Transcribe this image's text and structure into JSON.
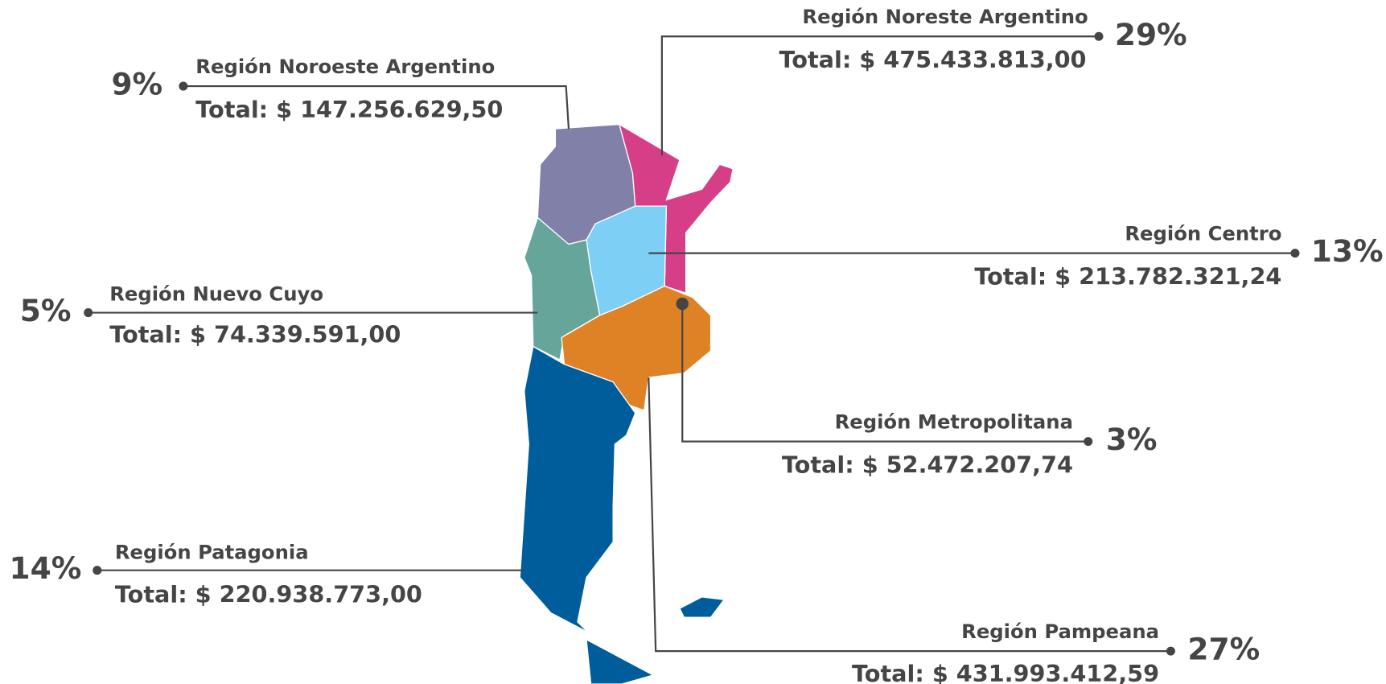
{
  "regions": [
    {
      "name": "Región Noroeste Argentino",
      "total": "Total: $ 147.256.629,50",
      "percent": "9%"
    },
    {
      "name": "Región Noreste Argentino",
      "total": "Total: $ 475.433.813,00",
      "percent": "29%"
    },
    {
      "name": "Región Centro",
      "total": "Total: $ 213.782.321,24",
      "percent": "13%"
    },
    {
      "name": "Región Nuevo Cuyo",
      "total": "Total: $ 74.339.591,00",
      "percent": "5%"
    },
    {
      "name": "Región Metropolitana",
      "total": "Total: $ 52.472.207,74",
      "percent": "3%"
    },
    {
      "name": "Región Patagonia",
      "total": "Total: $ 220.938.773,00",
      "percent": "14%"
    },
    {
      "name": "Región Pampeana",
      "total": "Total: $ 431.993.412,59",
      "percent": "27%"
    }
  ]
}
